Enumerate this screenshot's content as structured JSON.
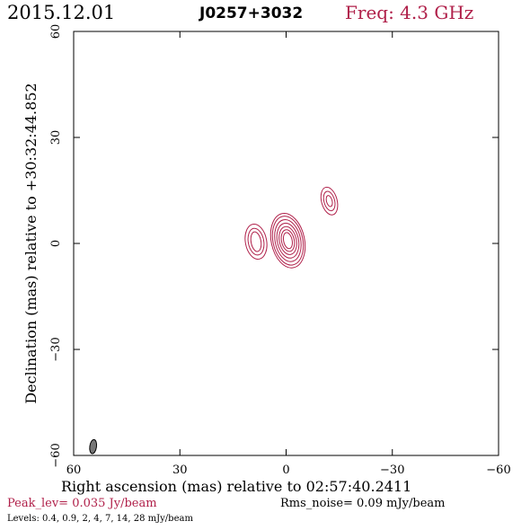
{
  "header": {
    "date": "2015.12.01",
    "source": "J0257+3032",
    "freq": "Freq: 4.3 GHz"
  },
  "footer": {
    "peak": "Peak_lev=  0.035 Jy/beam",
    "rms": "Rms_noise= 0.09 mJy/beam",
    "levels": "Levels: 0.4,  0.9,    2,    4,    7,   14,   28 mJy/beam"
  },
  "colors": {
    "contour": "#b0204a",
    "beam": "#777777"
  },
  "chart_data": {
    "type": "contour",
    "title": "J0257+3032",
    "xlabel": "Right ascension (mas) relative to 02:57:40.2411",
    "ylabel": "Declination (mas) relative to +30:32:44.852",
    "xlim": [
      60,
      -60
    ],
    "ylim": [
      -60,
      60
    ],
    "x_ticks": [
      60,
      30,
      0,
      -30,
      -60
    ],
    "y_ticks": [
      60,
      30,
      0,
      -30,
      -60
    ],
    "x_tick_labels": [
      "60",
      "30",
      "0",
      "−30",
      "−60"
    ],
    "y_tick_labels": [
      "60",
      "30",
      "0",
      "−30",
      "−60"
    ],
    "levels_mJy": [
      0.4,
      0.9,
      2,
      4,
      7,
      14,
      28
    ],
    "components": [
      {
        "x": -0.5,
        "y": 0.8,
        "rx": [
          1.2,
          1.8,
          2.4,
          3.0,
          3.6,
          4.2,
          4.7
        ],
        "ry": [
          2.3,
          3.1,
          4.0,
          5.0,
          6.0,
          7.0,
          7.8
        ],
        "angle": -12
      },
      {
        "x": 8.5,
        "y": 0.5,
        "rx": [
          1.4,
          2.2,
          3.0
        ],
        "ry": [
          2.8,
          3.8,
          5.0
        ],
        "angle": -10
      },
      {
        "x": -12.2,
        "y": 12.0,
        "rx": [
          0.8,
          1.5,
          2.2
        ],
        "ry": [
          1.6,
          2.8,
          4.0
        ],
        "angle": -15
      }
    ],
    "beam": {
      "x": 54.5,
      "y": -57.5,
      "major": 4.0,
      "minor": 1.9,
      "angle": 8
    }
  }
}
